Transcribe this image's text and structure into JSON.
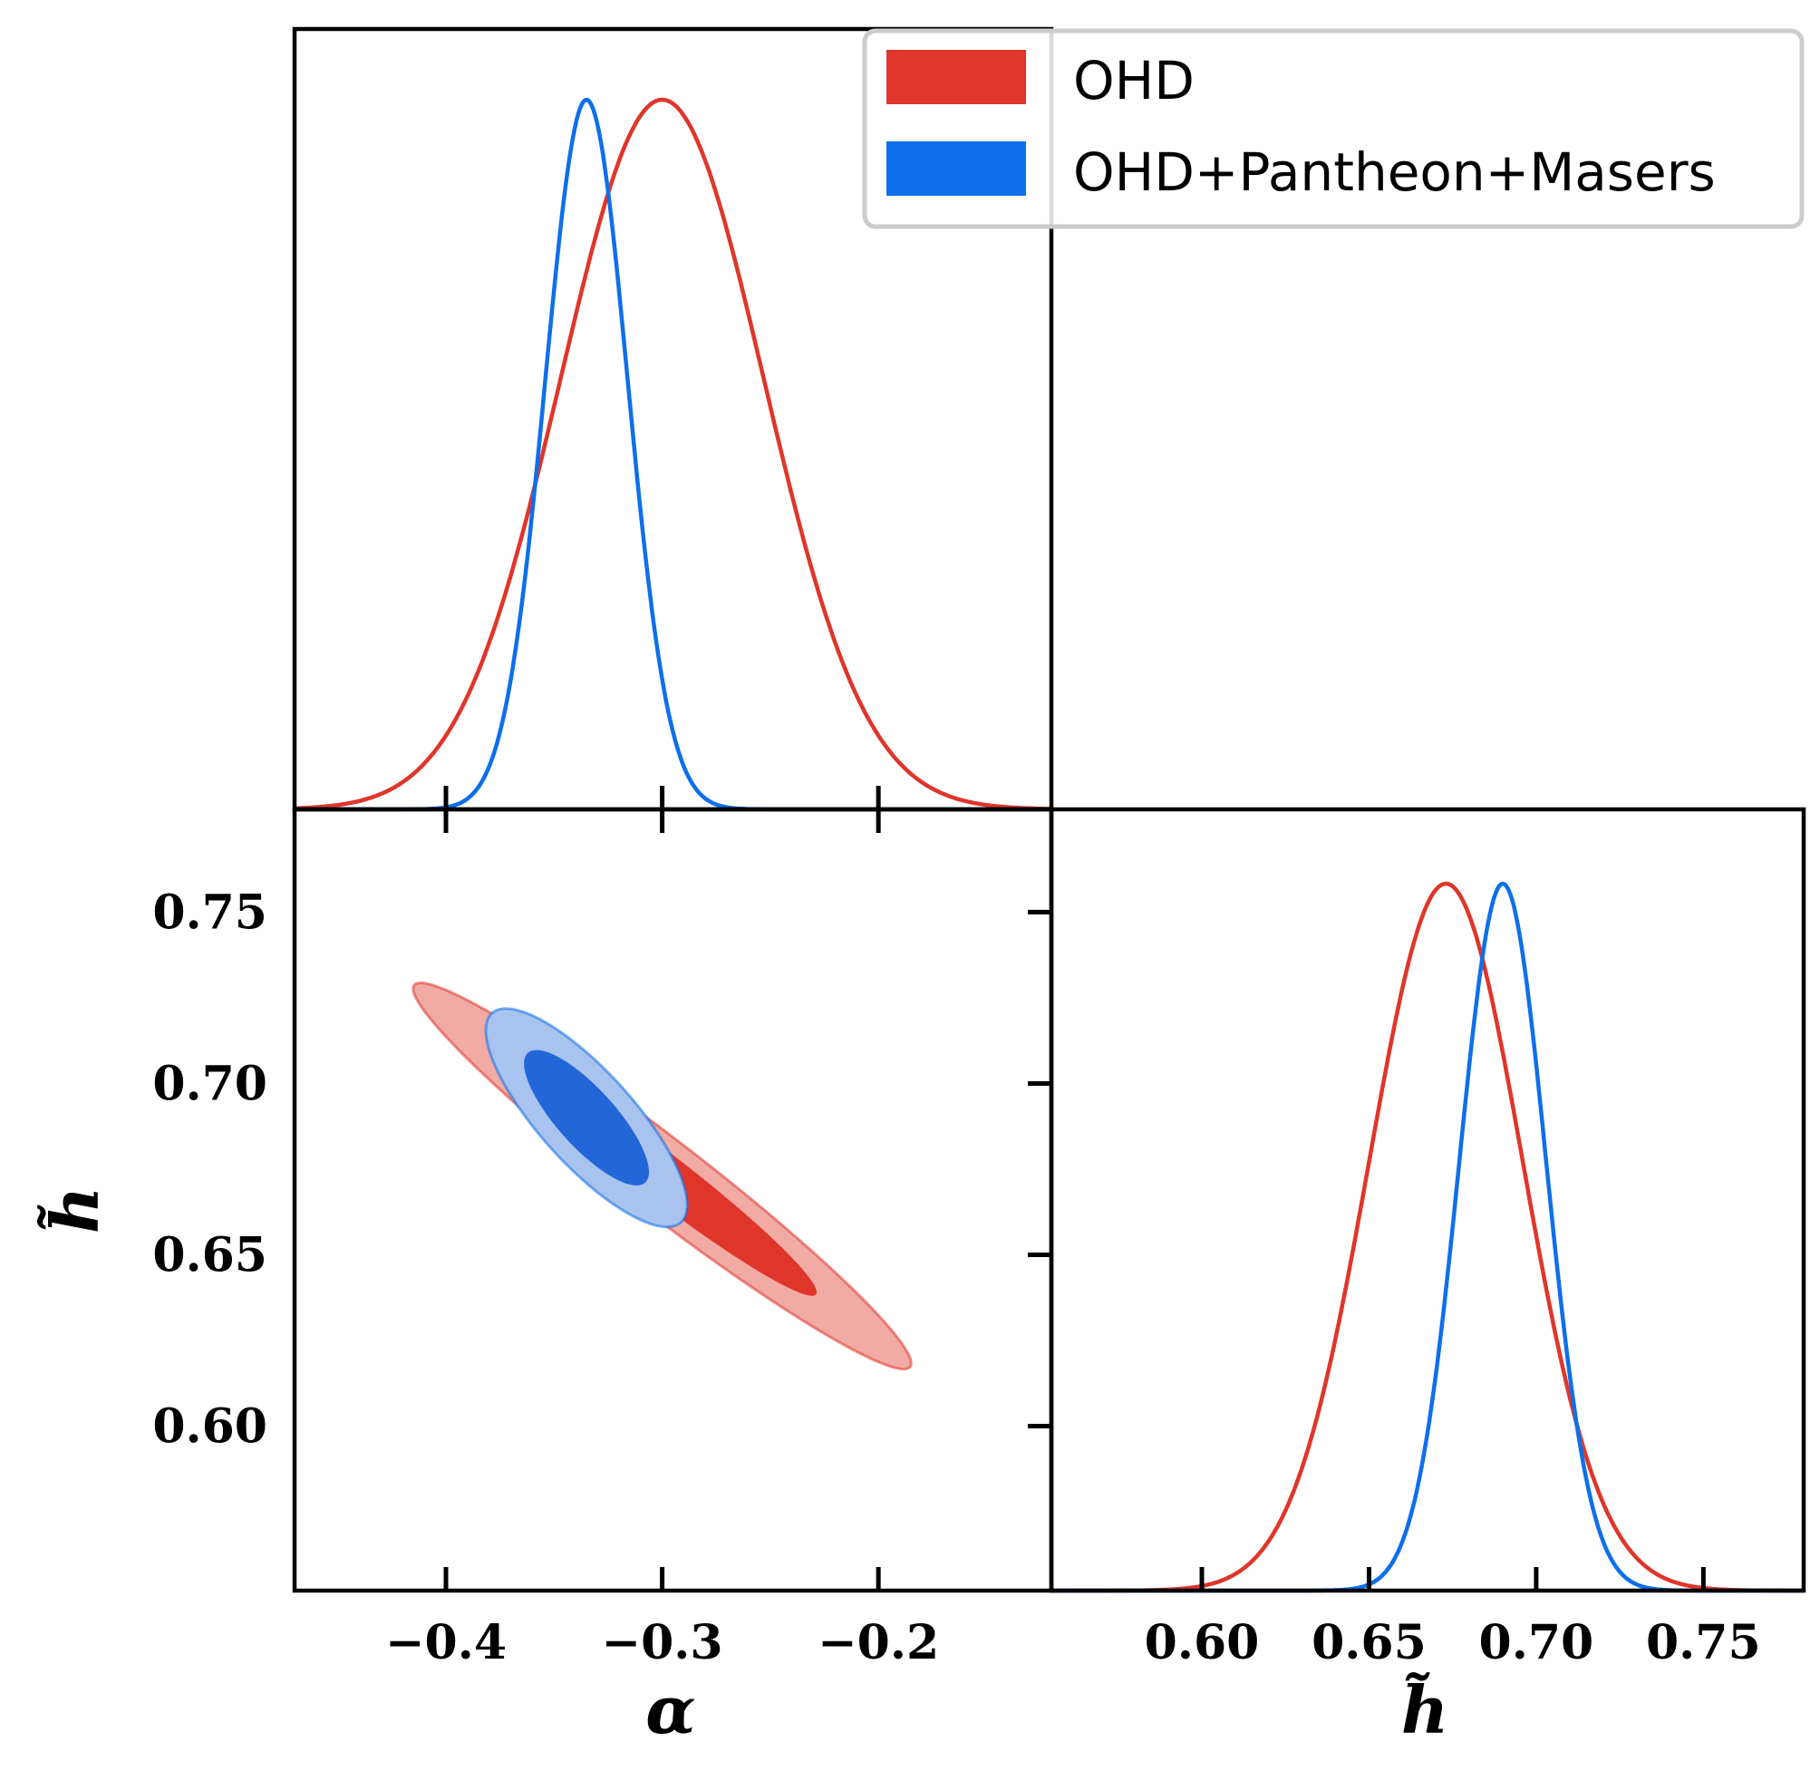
{
  "chart_data": {
    "type": "triangle-plot",
    "series": [
      {
        "name": "OHD",
        "color": "#e0352b",
        "contour_inner": "#e0352b",
        "contour_outer": "#f2aaa5",
        "alpha_mean": -0.3,
        "alpha_sigma": 0.047,
        "h_mean": 0.673,
        "h_sigma": 0.023,
        "correlation": -0.97
      },
      {
        "name": "OHD+Pantheon+Masers",
        "color": "#0e6fea",
        "contour_inner": "#2266d8",
        "contour_outer": "#a7c3ee",
        "alpha_mean": -0.335,
        "alpha_sigma": 0.019,
        "h_mean": 0.69,
        "h_sigma": 0.013,
        "correlation": -0.8
      }
    ],
    "panels": [
      {
        "name": "alpha-marginal",
        "type": "line",
        "xlim": [
          -0.47,
          -0.12
        ]
      },
      {
        "name": "h-marginal",
        "type": "line",
        "xlim": [
          0.555,
          0.78
        ]
      },
      {
        "name": "alpha-h-contour",
        "type": "contour",
        "xlim": [
          -0.47,
          -0.12
        ],
        "ylim": [
          0.552,
          0.78
        ]
      }
    ],
    "alpha_ticks": [
      -0.4,
      -0.3,
      -0.2
    ],
    "alpha_tick_labels": [
      "−0.4",
      "−0.3",
      "−0.2"
    ],
    "h_ticks": [
      0.6,
      0.65,
      0.7,
      0.75
    ],
    "h_tick_labels": [
      "0.60",
      "0.65",
      "0.70",
      "0.75"
    ],
    "xlabel_left": "α",
    "xlabel_right": "h̃",
    "ylabel": "h̃",
    "legend": {
      "position": "top-right",
      "entries": [
        "OHD",
        "OHD+Pantheon+Masers"
      ]
    }
  }
}
